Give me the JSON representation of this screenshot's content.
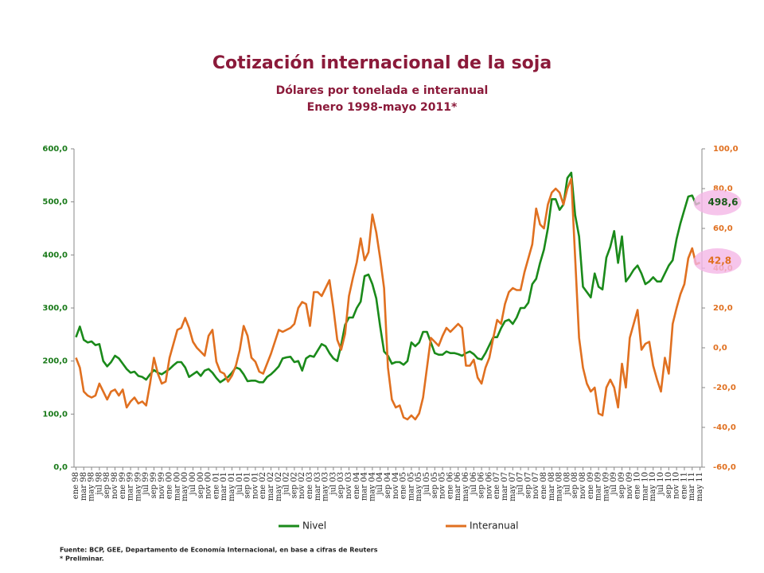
{
  "chart_data": {
    "type": "line",
    "title": "Cotización internacional de la soja",
    "subtitle": "Dólares por tonelada e interanual",
    "period": "Enero 1998-mayo 2011*",
    "source": "Fuente: BCP, GEE, Departamento de Economía Internacional, en base a cifras de Reuters",
    "note": "* Preliminar.",
    "categories": [
      "ene 98",
      null,
      "mar 98",
      null,
      "may 98",
      null,
      "jul 98",
      null,
      "sep 98",
      null,
      "nov 98",
      null,
      "ene 99",
      null,
      "mar 99",
      null,
      "may 99",
      null,
      "jul 99",
      null,
      "sep 99",
      null,
      "nov 99",
      null,
      "ene 00",
      null,
      "mar 00",
      null,
      "may 00",
      null,
      "jul 00",
      null,
      "sep 00",
      null,
      "nov 00",
      null,
      "ene 01",
      null,
      "mar 01",
      null,
      "may 01",
      null,
      "jul 01",
      null,
      "sep 01",
      null,
      "nov 01",
      null,
      "ene 02",
      null,
      "mar 02",
      null,
      "may 02",
      null,
      "jul 02",
      null,
      "sep 02",
      null,
      "nov 02",
      null,
      "ene 03",
      null,
      "mar 03",
      null,
      "may 03",
      null,
      "jul 03",
      null,
      "sep 03",
      null,
      "nov 03",
      null,
      "ene 04",
      null,
      "mar 04",
      null,
      "may 04",
      null,
      "jul 04",
      null,
      "sep 04",
      null,
      "nov 04",
      null,
      "ene 05",
      null,
      "mar 05",
      null,
      "may 05",
      null,
      "jul 05",
      null,
      "sep 05",
      null,
      "nov 05",
      null,
      "ene 06",
      null,
      "mar 06",
      null,
      "may 06",
      null,
      "jul 06",
      null,
      "sep 06",
      null,
      "nov 06",
      null,
      "ene 07",
      null,
      "mar 07",
      null,
      "may 07",
      null,
      "jul 07",
      null,
      "sep 07",
      null,
      "nov 07",
      null,
      "ene 08",
      null,
      "mar 08",
      null,
      "may 08",
      null,
      "jul 08",
      null,
      "sep 08",
      null,
      "nov 08",
      null,
      "ene 09",
      null,
      "mar 09",
      null,
      "may 09",
      null,
      "jul 09",
      null,
      "sep 09",
      null,
      "nov 09",
      null,
      "ene 10",
      null,
      "mar 10",
      null,
      "may 10",
      null,
      "jul 10",
      null,
      "sep 10",
      null,
      "nov 10",
      null,
      "ene 11",
      null,
      "mar 11",
      null,
      "may 11"
    ],
    "series": [
      {
        "name": "Nivel",
        "color": "#1a8a1a",
        "values": [
          245,
          265,
          240,
          235,
          237,
          230,
          232,
          200,
          190,
          198,
          210,
          205,
          195,
          185,
          178,
          180,
          172,
          170,
          165,
          175,
          183,
          178,
          175,
          180,
          185,
          192,
          198,
          198,
          188,
          170,
          175,
          180,
          172,
          182,
          185,
          178,
          168,
          160,
          165,
          170,
          178,
          188,
          185,
          175,
          162,
          163,
          163,
          160,
          160,
          170,
          175,
          182,
          190,
          205,
          207,
          208,
          198,
          200,
          182,
          205,
          210,
          208,
          220,
          232,
          228,
          215,
          205,
          200,
          230,
          268,
          282,
          282,
          300,
          312,
          360,
          363,
          345,
          318,
          265,
          218,
          210,
          195,
          198,
          198,
          193,
          200,
          235,
          228,
          235,
          255,
          255,
          235,
          215,
          212,
          212,
          218,
          215,
          215,
          213,
          210,
          215,
          218,
          213,
          205,
          203,
          215,
          230,
          245,
          245,
          262,
          275,
          278,
          270,
          282,
          300,
          300,
          310,
          345,
          355,
          385,
          410,
          450,
          505,
          505,
          485,
          495,
          545,
          555,
          475,
          435,
          340,
          330,
          320,
          365,
          340,
          335,
          395,
          415,
          445,
          385,
          435,
          350,
          360,
          372,
          380,
          365,
          345,
          350,
          358,
          350,
          350,
          365,
          380,
          390,
          430,
          460,
          485,
          510,
          512,
          495,
          498.6
        ],
        "value_labels": [
          null,
          null,
          null,
          null,
          null,
          null,
          null,
          null,
          null,
          null,
          null,
          null,
          null,
          null,
          null,
          null,
          null,
          null,
          null,
          null,
          null,
          null,
          null,
          null,
          null,
          null,
          null,
          null,
          null,
          null,
          null,
          null,
          null,
          null,
          null,
          null,
          null,
          null,
          null,
          null,
          null,
          null,
          null,
          null,
          null,
          null,
          null,
          null,
          null,
          null,
          null,
          null,
          null,
          null,
          null,
          null,
          null,
          null,
          null,
          null,
          null,
          null,
          null,
          null,
          null,
          null,
          null,
          null,
          null,
          null,
          null,
          null,
          null,
          null,
          null,
          null,
          null,
          null,
          null,
          null,
          null,
          null,
          null,
          null,
          null,
          null,
          null,
          null,
          null,
          null,
          null,
          null,
          null,
          null,
          null,
          null,
          null,
          null,
          null,
          null,
          null,
          null,
          null,
          null,
          null,
          null,
          null,
          null,
          null,
          null,
          null,
          null,
          null,
          null,
          null,
          null,
          null,
          null,
          null,
          null,
          null,
          null,
          null,
          null,
          null,
          null,
          null,
          null,
          null,
          null,
          null,
          null,
          null,
          null,
          null,
          null,
          null,
          null,
          null,
          null,
          null,
          null,
          null,
          null,
          null,
          null,
          null,
          null,
          null,
          null,
          null,
          null,
          null,
          null,
          null,
          null,
          null,
          null,
          null,
          null,
          "498,6"
        ]
      },
      {
        "name": "Interanual",
        "color": "#e07020",
        "axis": "y2",
        "values": [
          -5,
          -10,
          -22,
          -24,
          -25,
          -24,
          -18,
          -22,
          -26,
          -22,
          -21,
          -24,
          -21,
          -30,
          -27,
          -25,
          -28,
          -27,
          -29,
          -18,
          -5,
          -13,
          -18,
          -17,
          -5,
          2,
          9,
          10,
          15,
          10,
          3,
          0,
          -2,
          -4,
          6,
          9,
          -7,
          -12,
          -13,
          -17,
          -14,
          -9,
          -1,
          11,
          6,
          -5,
          -7,
          -12,
          -13,
          -8,
          -3,
          3,
          9,
          8,
          9,
          10,
          12,
          20,
          23,
          22,
          11,
          28,
          28,
          26,
          30,
          34,
          20,
          4,
          -1,
          7,
          26,
          35,
          43,
          55,
          44,
          48,
          67,
          58,
          45,
          30,
          -10,
          -26,
          -30,
          -29,
          -35,
          -36,
          -34,
          -36,
          -33,
          -25,
          -10,
          5,
          3,
          1,
          6,
          10,
          8,
          10,
          12,
          10,
          -9,
          -9,
          -6,
          -15,
          -18,
          -10,
          -5,
          5,
          14,
          12,
          22,
          28,
          30,
          29,
          29,
          38,
          45,
          52,
          70,
          62,
          60,
          72,
          78,
          80,
          78,
          72,
          80,
          85,
          45,
          5,
          -10,
          -18,
          -22,
          -20,
          -33,
          -34,
          -20,
          -16,
          -20,
          -30,
          -8,
          -20,
          5,
          12,
          19,
          -1,
          2,
          3,
          -9,
          -16,
          -22,
          -5,
          -13,
          12,
          20,
          27,
          32,
          45,
          50,
          42,
          42.8
        ],
        "value_labels": [
          null,
          null,
          null,
          null,
          null,
          null,
          null,
          null,
          null,
          null,
          null,
          null,
          null,
          null,
          null,
          null,
          null,
          null,
          null,
          null,
          null,
          null,
          null,
          null,
          null,
          null,
          null,
          null,
          null,
          null,
          null,
          null,
          null,
          null,
          null,
          null,
          null,
          null,
          null,
          null,
          null,
          null,
          null,
          null,
          null,
          null,
          null,
          null,
          null,
          null,
          null,
          null,
          null,
          null,
          null,
          null,
          null,
          null,
          null,
          null,
          null,
          null,
          null,
          null,
          null,
          null,
          null,
          null,
          null,
          null,
          null,
          null,
          null,
          null,
          null,
          null,
          null,
          null,
          null,
          null,
          null,
          null,
          null,
          null,
          null,
          null,
          null,
          null,
          null,
          null,
          null,
          null,
          null,
          null,
          null,
          null,
          null,
          null,
          null,
          null,
          null,
          null,
          null,
          null,
          null,
          null,
          null,
          null,
          null,
          null,
          null,
          null,
          null,
          null,
          null,
          null,
          null,
          null,
          null,
          null,
          null,
          null,
          null,
          null,
          null,
          null,
          null,
          null,
          null,
          null,
          null,
          null,
          null,
          null,
          null,
          null,
          null,
          null,
          null,
          null,
          null,
          null,
          null,
          null,
          null,
          null,
          null,
          null,
          null,
          null,
          null,
          null,
          null,
          null,
          null,
          null,
          null,
          null,
          null,
          null,
          "42,8"
        ]
      }
    ],
    "ylim": [
      0,
      600
    ],
    "yticks": [
      {
        "value": 0,
        "label": "0,0"
      },
      {
        "value": 100,
        "label": "100,0"
      },
      {
        "value": 200,
        "label": "200,0"
      },
      {
        "value": 300,
        "label": "300,0"
      },
      {
        "value": 400,
        "label": "400,0"
      },
      {
        "value": 500,
        "label": "500,0"
      },
      {
        "value": 600,
        "label": "600,0"
      }
    ],
    "y2lim": [
      -60,
      100
    ],
    "y2ticks": [
      {
        "value": -60,
        "label": "-60,0"
      },
      {
        "value": -40,
        "label": "-40,0"
      },
      {
        "value": -20,
        "label": "-20,0"
      },
      {
        "value": 0,
        "label": "0,0"
      },
      {
        "value": 20,
        "label": "20,0"
      },
      {
        "value": 40,
        "label": "40,0"
      },
      {
        "value": 60,
        "label": "60,0"
      },
      {
        "value": 80,
        "label": "80,0"
      },
      {
        "value": 100,
        "label": "100,0"
      }
    ],
    "y2color": "#e07020",
    "grid": false,
    "legend": "bottom"
  }
}
